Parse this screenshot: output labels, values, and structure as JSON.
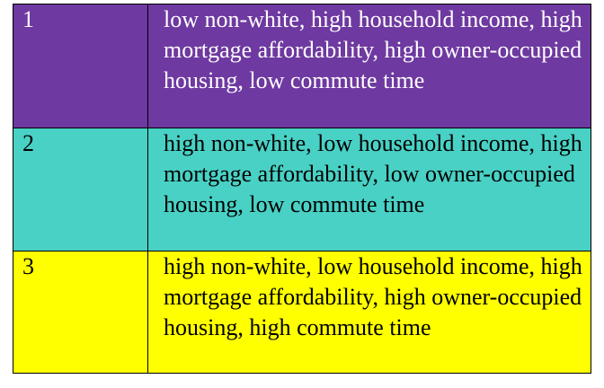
{
  "table": {
    "rows": [
      {
        "id": "1",
        "description": "low non-white, high household income, high mortgage affordability, high owner-occupied housing, low commute time",
        "background": "#6e39a0",
        "text_color": "#ffffff"
      },
      {
        "id": "2",
        "description": "high non-white, low household income, high mortgage affordability, low owner-occupied housing, low commute time",
        "background": "#49d1c5",
        "text_color": "#000000"
      },
      {
        "id": "3",
        "description": "high non-white, low household income, high mortgage affordability, high owner-occupied housing, high commute time",
        "background": "#ffff00",
        "text_color": "#000000"
      }
    ]
  }
}
